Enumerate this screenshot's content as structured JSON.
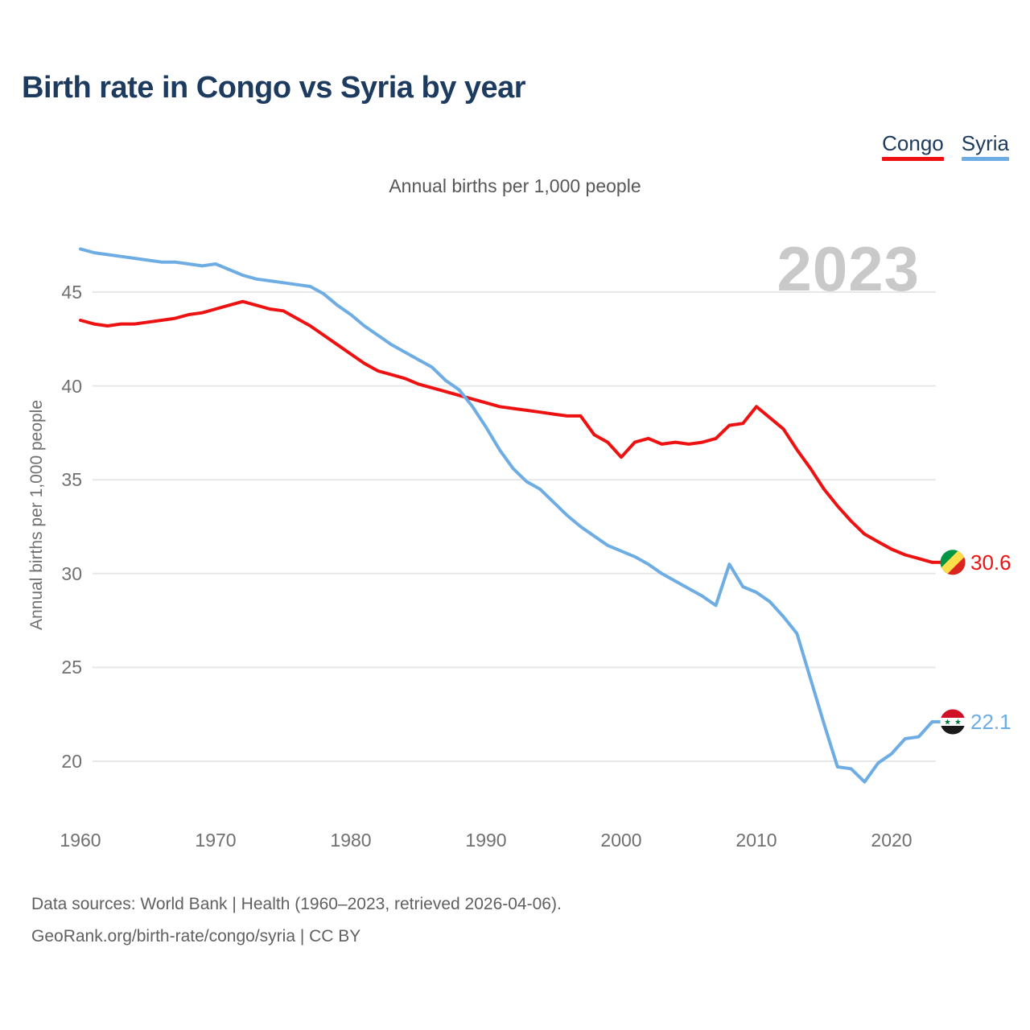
{
  "header": {
    "title": "Birth rate in Congo vs Syria by year"
  },
  "legend": [
    {
      "label": "Congo",
      "color": "#ee1111"
    },
    {
      "label": "Syria",
      "color": "#6dade3"
    }
  ],
  "subtitle": "Annual births per 1,000 people",
  "watermark": "2023",
  "chart_data": {
    "type": "line",
    "title": "Birth rate in Congo vs Syria by year",
    "xlabel": "",
    "ylabel": "Annual births per 1,000 people",
    "grid": "horizontal-only",
    "legend_position": "top-right",
    "ylim": [
      17.5,
      48.5
    ],
    "y_ticks": [
      20,
      25,
      30,
      35,
      40,
      45
    ],
    "x_ticks": [
      1960,
      1970,
      1980,
      1990,
      2000,
      2010,
      2020
    ],
    "x": [
      1960,
      1961,
      1962,
      1963,
      1964,
      1965,
      1966,
      1967,
      1968,
      1969,
      1970,
      1971,
      1972,
      1973,
      1974,
      1975,
      1976,
      1977,
      1978,
      1979,
      1980,
      1981,
      1982,
      1983,
      1984,
      1985,
      1986,
      1987,
      1988,
      1989,
      1990,
      1991,
      1992,
      1993,
      1994,
      1995,
      1996,
      1997,
      1998,
      1999,
      2000,
      2001,
      2002,
      2003,
      2004,
      2005,
      2006,
      2007,
      2008,
      2009,
      2010,
      2011,
      2012,
      2013,
      2014,
      2015,
      2016,
      2017,
      2018,
      2019,
      2020,
      2021,
      2022,
      2023
    ],
    "series": [
      {
        "name": "Congo",
        "color": "#ee1111",
        "end_label": "30.6",
        "end_value": 30.6,
        "values": [
          43.5,
          43.3,
          43.2,
          43.3,
          43.3,
          43.4,
          43.5,
          43.6,
          43.8,
          43.9,
          44.1,
          44.3,
          44.5,
          44.3,
          44.1,
          44.0,
          43.6,
          43.2,
          42.7,
          42.2,
          41.7,
          41.2,
          40.8,
          40.6,
          40.4,
          40.1,
          39.9,
          39.7,
          39.5,
          39.3,
          39.1,
          38.9,
          38.8,
          38.7,
          38.6,
          38.5,
          38.4,
          38.4,
          37.4,
          37.0,
          36.2,
          37.0,
          37.2,
          36.9,
          37.0,
          36.9,
          37.0,
          37.2,
          37.9,
          38.0,
          38.9,
          38.3,
          37.7,
          36.6,
          35.6,
          34.5,
          33.6,
          32.8,
          32.1,
          31.7,
          31.3,
          31.0,
          30.8,
          30.6
        ]
      },
      {
        "name": "Syria",
        "color": "#6dade3",
        "end_label": "22.1",
        "end_value": 22.1,
        "values": [
          47.3,
          47.1,
          47.0,
          46.9,
          46.8,
          46.7,
          46.6,
          46.6,
          46.5,
          46.4,
          46.5,
          46.2,
          45.9,
          45.7,
          45.6,
          45.5,
          45.4,
          45.3,
          44.9,
          44.3,
          43.8,
          43.2,
          42.7,
          42.2,
          41.8,
          41.4,
          41.0,
          40.3,
          39.8,
          38.9,
          37.8,
          36.6,
          35.6,
          34.9,
          34.5,
          33.8,
          33.1,
          32.5,
          32.0,
          31.5,
          31.2,
          30.9,
          30.5,
          30.0,
          29.6,
          29.2,
          28.8,
          28.3,
          30.5,
          29.3,
          29.0,
          28.5,
          27.7,
          26.8,
          24.4,
          22.0,
          19.7,
          19.6,
          18.9,
          19.9,
          20.4,
          21.2,
          21.3,
          22.1
        ]
      }
    ]
  },
  "footer": {
    "line1": "Data sources: World Bank | Health (1960–2023, retrieved 2026-04-06).",
    "line2": "GeoRank.org/birth-rate/congo/syria | CC BY"
  }
}
